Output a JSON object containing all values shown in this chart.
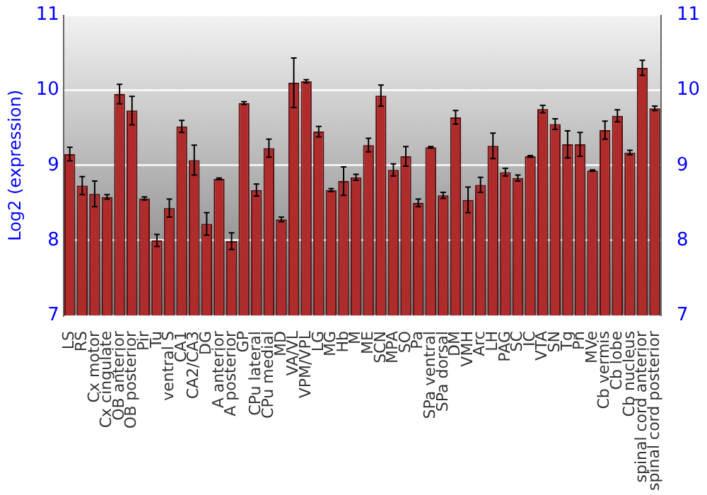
{
  "chart_data": {
    "type": "bar",
    "ylabel": "Log2 (expression)",
    "categories": [
      "LS",
      "RS",
      "Cx motor",
      "Cx cingulate",
      "OB anterior",
      "OB posterior",
      "Pir",
      "Tu",
      "ventral S",
      "CA1",
      "CA2/CA3",
      "DG",
      "A anterior",
      "A posterior",
      "GP",
      "CPu lateral",
      "CPu medial",
      "MD",
      "VA/VL",
      "VPM/VPL",
      "LG",
      "MG",
      "Hb",
      "M",
      "ME",
      "SCN",
      "MPA",
      "SO",
      "Pa",
      "SPa ventral",
      "SPa dorsal",
      "DM",
      "VMH",
      "Arc",
      "LH",
      "PAG",
      "SC",
      "IC",
      "VTA",
      "SN",
      "Tg",
      "Pn",
      "MVe",
      "Cb vermis",
      "Cb lobe",
      "Cb nucleus",
      "spinal cord anterior",
      "spinal cord posterior"
    ],
    "values": [
      9.15,
      8.73,
      8.62,
      8.58,
      9.95,
      9.73,
      8.56,
      8.0,
      8.43,
      9.52,
      9.07,
      8.22,
      8.82,
      7.99,
      9.83,
      8.67,
      9.23,
      8.28,
      10.1,
      10.12,
      9.45,
      8.67,
      8.79,
      8.84,
      9.27,
      9.93,
      8.94,
      9.12,
      8.5,
      9.24,
      8.6,
      9.64,
      8.54,
      8.74,
      9.26,
      8.91,
      8.83,
      9.12,
      9.75,
      9.55,
      9.28,
      9.28,
      8.93,
      9.47,
      9.66,
      9.17,
      10.3,
      9.76
    ],
    "errors": [
      0.09,
      0.12,
      0.17,
      0.03,
      0.13,
      0.19,
      0.02,
      0.08,
      0.12,
      0.08,
      0.2,
      0.15,
      0.01,
      0.11,
      0.02,
      0.08,
      0.12,
      0.03,
      0.33,
      0.02,
      0.07,
      0.02,
      0.19,
      0.04,
      0.09,
      0.14,
      0.08,
      0.13,
      0.05,
      0.01,
      0.04,
      0.09,
      0.17,
      0.1,
      0.17,
      0.05,
      0.04,
      0.01,
      0.05,
      0.07,
      0.18,
      0.16,
      0.01,
      0.12,
      0.08,
      0.03,
      0.1,
      0.03
    ],
    "color": "#b02c2c",
    "ylim": [
      7,
      11
    ],
    "yticks": [
      7,
      8,
      9,
      10,
      11
    ],
    "y2lim": [
      7,
      11
    ],
    "y2ticks": [
      7,
      8,
      9,
      10,
      11
    ],
    "grid": "y",
    "legend": false
  }
}
